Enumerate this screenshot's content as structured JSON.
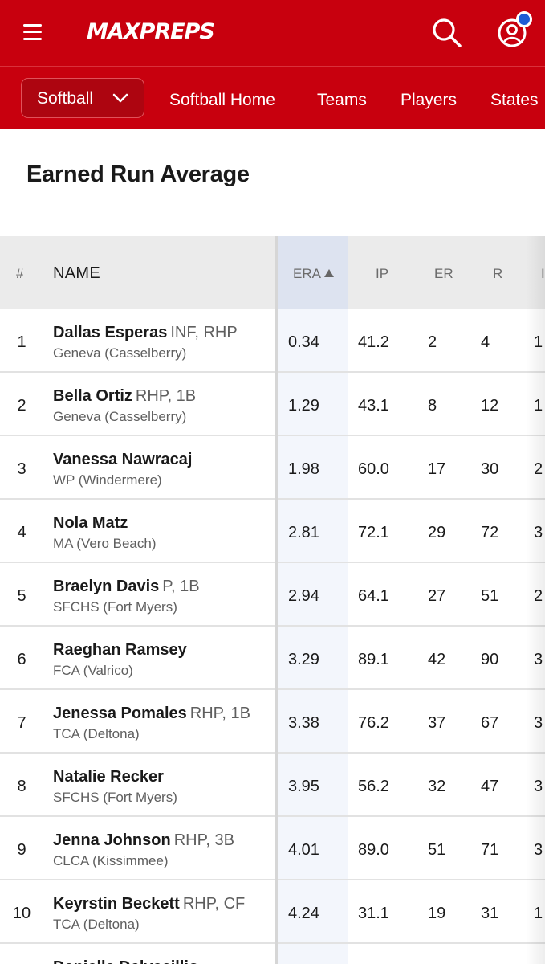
{
  "header": {
    "logo_text": "MAXPREPS",
    "menu_icon": "hamburger-menu-icon",
    "search_icon": "search-icon",
    "account_icon": "user-account-icon",
    "brand_color": "#c8000e",
    "notification_color": "#1f5cd6"
  },
  "subnav": {
    "sport": "Softball",
    "links": [
      "Softball Home",
      "Teams",
      "Players",
      "States"
    ]
  },
  "page": {
    "title": "Earned Run Average"
  },
  "table": {
    "columns": {
      "rank": "#",
      "name": "NAME",
      "era": "ERA",
      "ip": "IP",
      "er": "ER",
      "r": "R"
    },
    "sorted_by": "ERA",
    "sort_direction": "ascending",
    "rows": [
      {
        "rank": "1",
        "name": "Dallas Esperas",
        "pos": "INF, RHP",
        "school": "Geneva (Casselberry)",
        "era": "0.34",
        "ip": "41.2",
        "er": "2",
        "r": "4",
        "next": "1"
      },
      {
        "rank": "2",
        "name": "Bella Ortiz",
        "pos": "RHP, 1B",
        "school": "Geneva (Casselberry)",
        "era": "1.29",
        "ip": "43.1",
        "er": "8",
        "r": "12",
        "next": "1"
      },
      {
        "rank": "3",
        "name": "Vanessa Nawracaj",
        "pos": "",
        "school": "WP (Windermere)",
        "era": "1.98",
        "ip": "60.0",
        "er": "17",
        "r": "30",
        "next": "2"
      },
      {
        "rank": "4",
        "name": "Nola Matz",
        "pos": "",
        "school": "MA (Vero Beach)",
        "era": "2.81",
        "ip": "72.1",
        "er": "29",
        "r": "72",
        "next": "3"
      },
      {
        "rank": "5",
        "name": "Braelyn Davis",
        "pos": "P, 1B",
        "school": "SFCHS (Fort Myers)",
        "era": "2.94",
        "ip": "64.1",
        "er": "27",
        "r": "51",
        "next": "2"
      },
      {
        "rank": "6",
        "name": "Raeghan Ramsey",
        "pos": "",
        "school": "FCA (Valrico)",
        "era": "3.29",
        "ip": "89.1",
        "er": "42",
        "r": "90",
        "next": "3"
      },
      {
        "rank": "7",
        "name": "Jenessa Pomales",
        "pos": "RHP, 1B",
        "school": "TCA (Deltona)",
        "era": "3.38",
        "ip": "76.2",
        "er": "37",
        "r": "67",
        "next": "3"
      },
      {
        "rank": "8",
        "name": "Natalie Recker",
        "pos": "",
        "school": "SFCHS (Fort Myers)",
        "era": "3.95",
        "ip": "56.2",
        "er": "32",
        "r": "47",
        "next": "3"
      },
      {
        "rank": "9",
        "name": "Jenna Johnson",
        "pos": "RHP, 3B",
        "school": "CLCA (Kissimmee)",
        "era": "4.01",
        "ip": "89.0",
        "er": "51",
        "r": "71",
        "next": "3"
      },
      {
        "rank": "10",
        "name": "Keyrstin Beckett",
        "pos": "RHP, CF",
        "school": "TCA (Deltona)",
        "era": "4.24",
        "ip": "31.1",
        "er": "19",
        "r": "31",
        "next": "1"
      },
      {
        "rank": "",
        "name": "Daniella Delvecillio",
        "pos": "",
        "school": "",
        "era": "",
        "ip": "",
        "er": "",
        "r": "",
        "next": ""
      }
    ]
  }
}
